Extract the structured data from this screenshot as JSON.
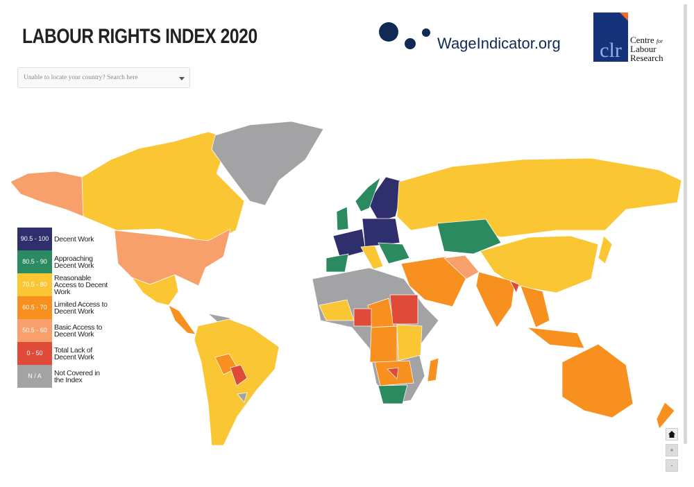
{
  "header": {
    "title": "LABOUR RIGHTS INDEX 2020"
  },
  "logos": {
    "wage": "WageIndicator.org",
    "clr_mark": "clr",
    "clr_lines": [
      "Centre",
      "for",
      "Labour",
      "Research"
    ]
  },
  "search": {
    "placeholder": "Unable to locate your country? Search here"
  },
  "legend": {
    "items": [
      {
        "range": "90.5 - 100",
        "label": "Decent Work",
        "color": "#2f2f6e"
      },
      {
        "range": "80.5 - 90",
        "label": "Approaching Decent Work",
        "color": "#2b8a5f"
      },
      {
        "range": "70.5 - 80",
        "label": "Reasonable Access to Decent Work",
        "color": "#fbc634"
      },
      {
        "range": "60.5 - 70",
        "label": "Limited Access to Decent Work",
        "color": "#f7901f"
      },
      {
        "range": "50.5 - 60",
        "label": "Basic Access to Decent Work",
        "color": "#f8a06c"
      },
      {
        "range": "0 - 50",
        "label": "Total Lack of Decent Work",
        "color": "#e04a38"
      },
      {
        "range": "N / A",
        "label": "Not Covered in the Index",
        "color": "#a3a3a6"
      }
    ]
  },
  "controls": {
    "zoom_in": "+",
    "zoom_out": "-"
  }
}
